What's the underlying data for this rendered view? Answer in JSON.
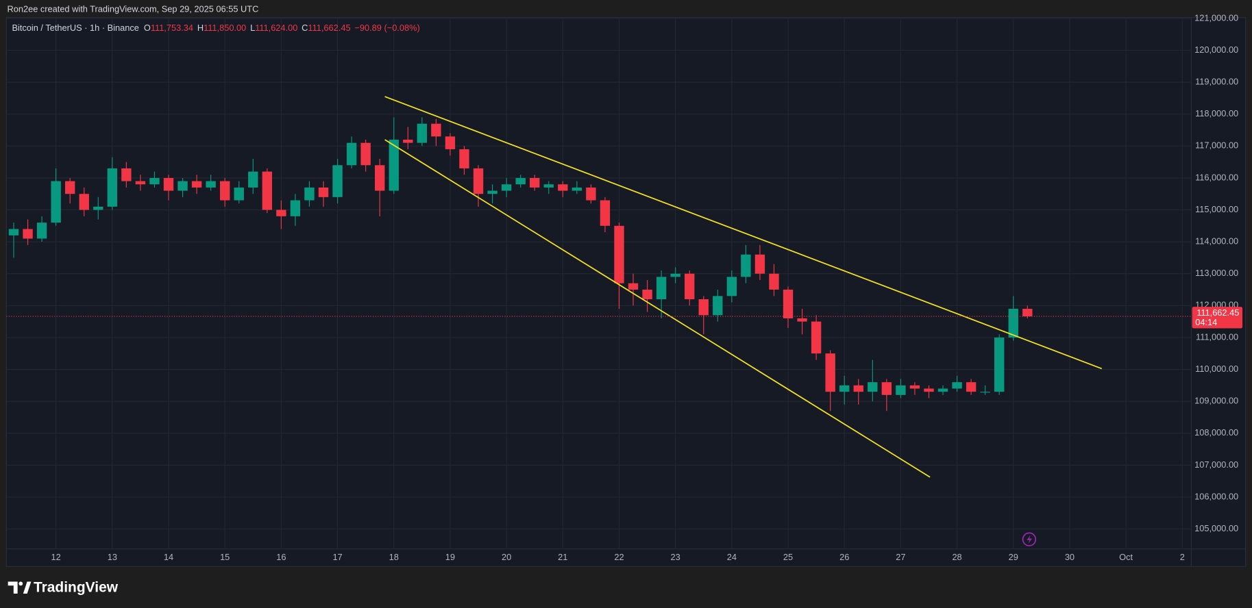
{
  "attribution": "Ron2ee created with TradingView.com, Sep 29, 2025 06:55 UTC",
  "logo_text": "TradingView",
  "chart_data": {
    "type": "candlestick",
    "title": "Bitcoin / TetherUS · 1h · Binance",
    "ohlc_header": [
      {
        "label": "O",
        "value": "111,753.34"
      },
      {
        "label": "H",
        "value": "111,850.00"
      },
      {
        "label": "L",
        "value": "111,624.00"
      },
      {
        "label": "C",
        "value": "111,662.45"
      }
    ],
    "change": "−90.89 (−0.08%)",
    "up_color": "#089981",
    "down_color": "#f23645",
    "grid": true,
    "x": [
      11.25,
      11.5,
      11.75,
      12,
      12.25,
      12.5,
      12.75,
      13,
      13.25,
      13.5,
      13.75,
      14,
      14.25,
      14.5,
      14.75,
      15,
      15.25,
      15.5,
      15.75,
      16,
      16.25,
      16.5,
      16.75,
      17,
      17.25,
      17.5,
      17.75,
      18,
      18.25,
      18.5,
      18.75,
      19,
      19.25,
      19.5,
      19.75,
      20,
      20.25,
      20.5,
      20.75,
      21,
      21.25,
      21.5,
      21.75,
      22,
      22.25,
      22.5,
      22.75,
      23,
      23.25,
      23.5,
      23.75,
      24,
      24.25,
      24.5,
      24.75,
      25,
      25.25,
      25.5,
      25.75,
      26,
      26.25,
      26.5,
      26.75,
      27,
      27.25,
      27.5,
      27.75,
      28,
      28.25,
      28.5,
      28.75,
      29,
      29.25
    ],
    "open": [
      114200,
      114400,
      114100,
      114600,
      115900,
      115500,
      115000,
      115100,
      116300,
      115900,
      115800,
      116000,
      115600,
      115900,
      115700,
      115900,
      115300,
      115700,
      116200,
      115000,
      114800,
      115300,
      115700,
      115400,
      116400,
      117100,
      116400,
      115600,
      117200,
      117100,
      117700,
      117300,
      116900,
      116300,
      115500,
      115600,
      115800,
      116000,
      115700,
      115800,
      115600,
      115700,
      115300,
      114500,
      112700,
      112500,
      112200,
      112900,
      113000,
      112200,
      111700,
      112300,
      112900,
      113600,
      113000,
      112500,
      111600,
      111500,
      110500,
      109300,
      109500,
      109300,
      109600,
      109200,
      109500,
      109400,
      109300,
      109400,
      109600,
      109300,
      109300,
      111000,
      111900
    ],
    "high": [
      114600,
      114700,
      114800,
      116300,
      116000,
      115700,
      115400,
      116650,
      116500,
      116100,
      116200,
      116100,
      116000,
      116100,
      116100,
      116000,
      115900,
      116600,
      116300,
      115300,
      115500,
      115900,
      115900,
      116600,
      117300,
      117200,
      116600,
      117900,
      117600,
      117900,
      117850,
      117400,
      117000,
      116400,
      115800,
      116000,
      116100,
      116100,
      115900,
      115900,
      115900,
      115800,
      115400,
      114600,
      113000,
      112800,
      113100,
      113200,
      113100,
      112300,
      112500,
      113100,
      113900,
      113900,
      113300,
      112600,
      111900,
      111700,
      110600,
      109800,
      109700,
      110300,
      109700,
      109700,
      109600,
      109500,
      109500,
      109800,
      109700,
      109500,
      111100,
      112300,
      112000
    ],
    "low": [
      113500,
      113900,
      114000,
      114500,
      115200,
      114800,
      114700,
      115000,
      115700,
      115600,
      115700,
      115300,
      115400,
      115500,
      115600,
      115100,
      115200,
      115500,
      114900,
      114400,
      114500,
      115100,
      115100,
      115200,
      116300,
      116200,
      114800,
      115500,
      116900,
      117000,
      117000,
      116700,
      116100,
      115100,
      115200,
      115400,
      115700,
      115600,
      115500,
      115400,
      115500,
      115200,
      114300,
      111900,
      112000,
      111800,
      111600,
      112700,
      112000,
      111100,
      111500,
      112100,
      112700,
      112800,
      112300,
      111300,
      111100,
      110300,
      108700,
      108900,
      108900,
      109000,
      108700,
      109100,
      109200,
      109100,
      109200,
      109300,
      109200,
      109200,
      109200,
      110900,
      111600
    ],
    "close": [
      114400,
      114100,
      114600,
      115900,
      115500,
      115000,
      115100,
      116300,
      115900,
      115800,
      116000,
      115600,
      115900,
      115700,
      115900,
      115300,
      115700,
      116200,
      115000,
      114800,
      115300,
      115700,
      115400,
      116400,
      117100,
      116400,
      115600,
      117200,
      117100,
      117700,
      117300,
      116900,
      116300,
      115500,
      115600,
      115800,
      116000,
      115700,
      115800,
      115600,
      115700,
      115300,
      114500,
      112700,
      112500,
      112200,
      112900,
      113000,
      112200,
      111700,
      112300,
      112900,
      113600,
      113000,
      112500,
      111600,
      111500,
      110500,
      109300,
      109500,
      109300,
      109600,
      109200,
      109500,
      109400,
      109300,
      109400,
      109600,
      109300,
      109300,
      111000,
      111900,
      111662.45
    ],
    "last_price": {
      "value": 111662.45,
      "label": "111,662.45"
    },
    "countdown": "04:14",
    "trend_lines": [
      {
        "color": "#f5e31f",
        "x": [
          17.84,
          30.57
        ],
        "y": [
          118550,
          110025
        ]
      },
      {
        "color": "#f5e31f",
        "x": [
          17.84,
          27.52
        ],
        "y": [
          117200,
          106625
        ]
      }
    ],
    "xlim": [
      11.12,
      32.16
    ],
    "ylim": [
      104375,
      121025
    ],
    "xticks": [
      12,
      13,
      14,
      15,
      16,
      17,
      18,
      19,
      20,
      21,
      22,
      23,
      24,
      25,
      26,
      27,
      28,
      29,
      30,
      {
        "value": 31,
        "label": "Oct"
      },
      {
        "value": 32,
        "label": "2"
      }
    ],
    "yticks": [
      {
        "value": 105000,
        "label": "105,000.00"
      },
      {
        "value": 106000,
        "label": "106,000.00"
      },
      {
        "value": 107000,
        "label": "107,000.00"
      },
      {
        "value": 108000,
        "label": "108,000.00"
      },
      {
        "value": 109000,
        "label": "109,000.00"
      },
      {
        "value": 110000,
        "label": "110,000.00"
      },
      {
        "value": 111000,
        "label": "111,000.00"
      },
      {
        "value": 112000,
        "label": "112,000.00"
      },
      {
        "value": 113000,
        "label": "113,000.00"
      },
      {
        "value": 114000,
        "label": "114,000.00"
      },
      {
        "value": 115000,
        "label": "115,000.00"
      },
      {
        "value": 116000,
        "label": "116,000.00"
      },
      {
        "value": 117000,
        "label": "117,000.00"
      },
      {
        "value": 118000,
        "label": "118,000.00"
      },
      {
        "value": 119000,
        "label": "119,000.00"
      },
      {
        "value": 120000,
        "label": "120,000.00"
      },
      {
        "value": 121000,
        "label": "121,000.00"
      }
    ]
  }
}
